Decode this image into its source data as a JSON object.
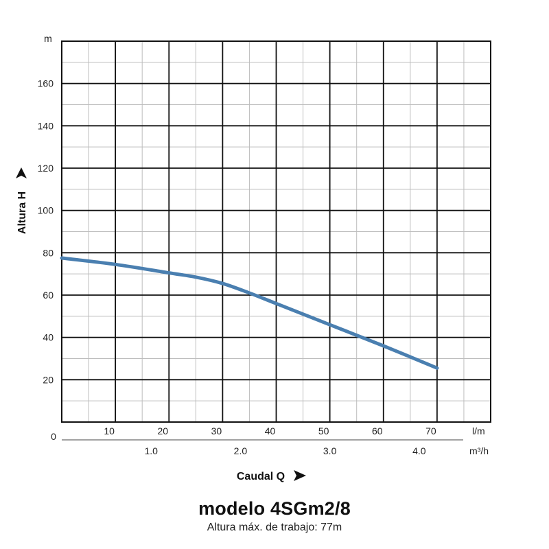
{
  "chart_data": {
    "type": "line",
    "title": "modelo 4SGm2/8",
    "subtitle": "Altura máx. de trabajo: 77m",
    "xlabel": "Caudal Q",
    "ylabel": "Altura H",
    "x_unit_primary": "l/m",
    "x_unit_secondary": "m³/h",
    "y_unit": "m",
    "origin_label": "0",
    "xlim": [
      0,
      80
    ],
    "ylim": [
      0,
      180
    ],
    "x_ticks": [
      "10",
      "20",
      "30",
      "40",
      "50",
      "60",
      "70"
    ],
    "x_ticks_values": [
      10,
      20,
      30,
      40,
      50,
      60,
      70
    ],
    "x2_ticks": [
      "1.0",
      "2.0",
      "3.0",
      "4.0"
    ],
    "x2_ticks_values": [
      1.0,
      2.0,
      3.0,
      4.0
    ],
    "y_ticks": [
      "20",
      "40",
      "60",
      "80",
      "100",
      "120",
      "140",
      "160"
    ],
    "y_ticks_values": [
      20,
      40,
      60,
      80,
      100,
      120,
      140,
      160
    ],
    "grid": true,
    "series": [
      {
        "x": [
          0,
          10,
          20,
          25,
          30,
          35,
          40,
          50,
          60,
          70
        ],
        "y": [
          77.5,
          74.5,
          70.5,
          68.5,
          65.5,
          61,
          56,
          46,
          36,
          25.5
        ],
        "color": "#4a7fb0"
      }
    ]
  }
}
